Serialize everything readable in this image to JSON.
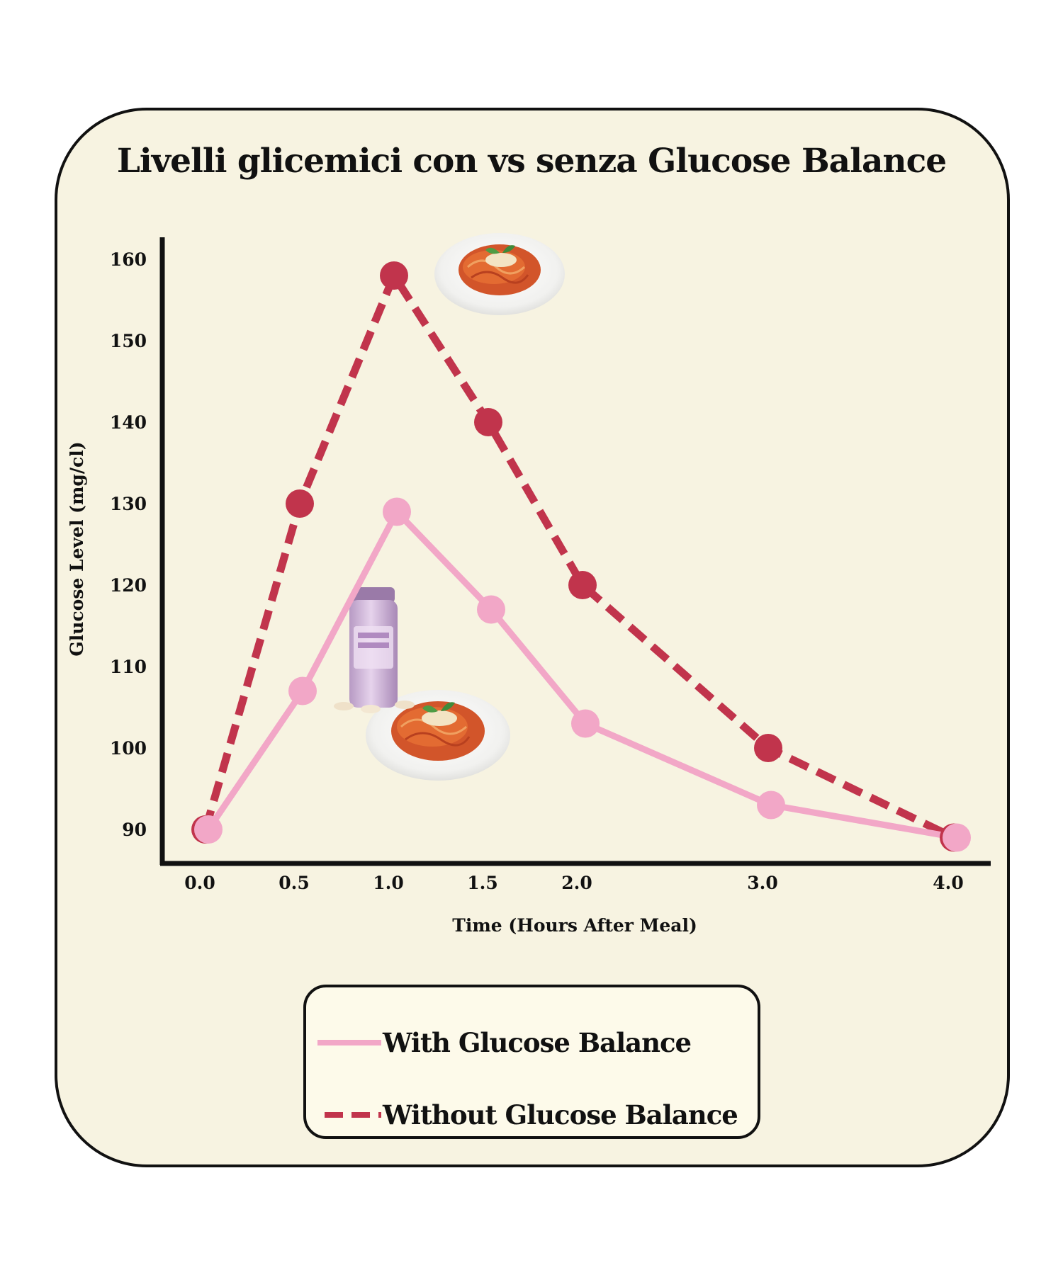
{
  "chart_data": {
    "type": "line",
    "title": "Livelli glicemici con vs senza Glucose Balance",
    "xlabel": "Time (Hours After Meal)",
    "ylabel": "Glucose Level (mg/cl)",
    "x_ticks": [
      "0.0",
      "0.5",
      "1.0",
      "1.5",
      "2.0",
      "3.0",
      "4.0"
    ],
    "y_ticks": [
      "90",
      "100",
      "110",
      "120",
      "130",
      "140",
      "150",
      "160"
    ],
    "ylim": [
      85,
      163
    ],
    "grid": false,
    "legend_position": "bottom-center",
    "series": [
      {
        "name": "With Glucose Balance",
        "style": "solid",
        "color": "#f2a7c7",
        "points": [
          [
            0.0,
            90
          ],
          [
            0.5,
            107
          ],
          [
            1.0,
            129
          ],
          [
            1.5,
            117
          ],
          [
            2.0,
            103
          ],
          [
            3.0,
            93
          ],
          [
            4.0,
            89
          ]
        ]
      },
      {
        "name": "Without Glucose Balance",
        "style": "dashed",
        "color": "#c1344c",
        "points": [
          [
            0.0,
            90
          ],
          [
            0.5,
            130
          ],
          [
            1.0,
            158
          ],
          [
            1.5,
            140
          ],
          [
            2.0,
            120
          ],
          [
            3.0,
            100
          ],
          [
            4.0,
            89
          ]
        ]
      }
    ],
    "illustrations": [
      "pasta-plate-icon",
      "supplement-bottle-icon",
      "pasta-plate-icon"
    ]
  }
}
